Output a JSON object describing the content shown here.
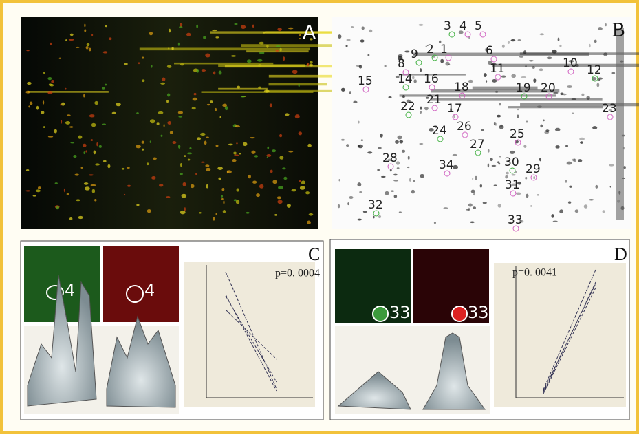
{
  "panel_labels": [
    "A",
    "B",
    "C",
    "D"
  ],
  "spots": [
    "3",
    "4",
    "5",
    "2",
    "1",
    "6",
    "9",
    "8",
    "10",
    "12",
    "11",
    "15",
    "14",
    "16",
    "18",
    "19",
    "20",
    "21",
    "22",
    "17",
    "23",
    "24",
    "26",
    "25",
    "27",
    "28",
    "34",
    "30",
    "29",
    "31",
    "32",
    "33"
  ],
  "panel_c": {
    "spot_green": "4",
    "spot_red": "4",
    "p_value": "p=0. 0004"
  },
  "panel_d": {
    "spot_green": "33",
    "spot_red": "33",
    "p_value": "p=0. 0041"
  }
}
